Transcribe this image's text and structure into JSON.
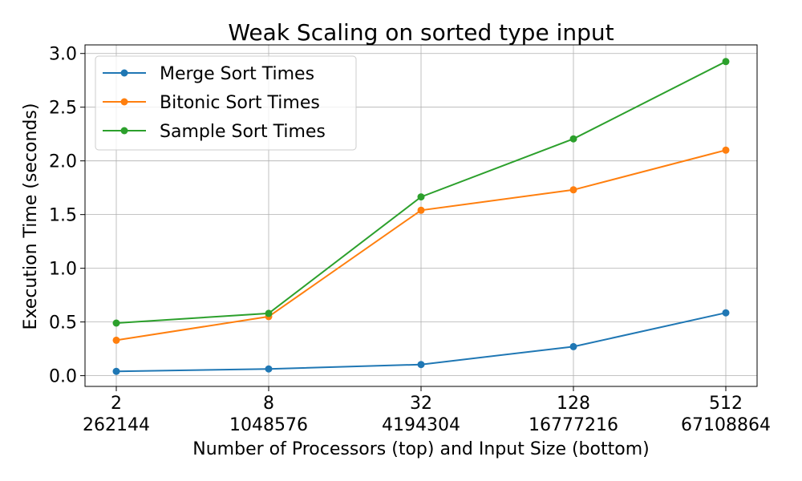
{
  "chart_data": {
    "type": "line",
    "title": "Weak Scaling on sorted type input",
    "xlabel": "Number of Processors (top) and Input Size (bottom)",
    "ylabel": "Execution Time (seconds)",
    "categories_top": [
      "2",
      "8",
      "32",
      "128",
      "512"
    ],
    "categories_bottom": [
      "262144",
      "1048576",
      "4194304",
      "16777216",
      "67108864"
    ],
    "ylim": [
      -0.1,
      3.08
    ],
    "yticks": [
      0.0,
      0.5,
      1.0,
      1.5,
      2.0,
      2.5,
      3.0
    ],
    "ytick_labels": [
      "0.0",
      "0.5",
      "1.0",
      "1.5",
      "2.0",
      "2.5",
      "3.0"
    ],
    "grid": true,
    "legend_position": "top-left",
    "series": [
      {
        "name": "Merge Sort Times",
        "color": "#1f77b4",
        "values": [
          0.04,
          0.063,
          0.104,
          0.27,
          0.585
        ]
      },
      {
        "name": "Bitonic Sort Times",
        "color": "#ff7f0e",
        "values": [
          0.33,
          0.55,
          1.54,
          1.73,
          2.1
        ]
      },
      {
        "name": "Sample Sort Times",
        "color": "#2ca02c",
        "values": [
          0.49,
          0.58,
          1.665,
          2.205,
          2.925
        ]
      }
    ]
  }
}
